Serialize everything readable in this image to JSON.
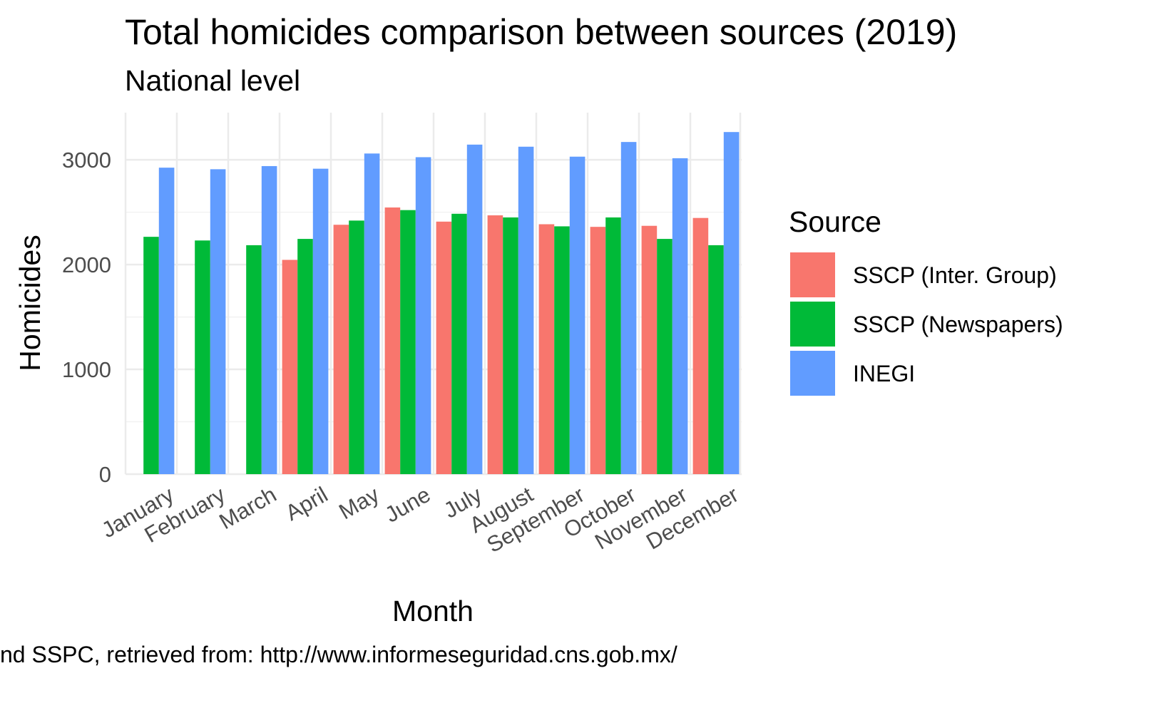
{
  "chart_data": {
    "type": "bar",
    "title": "Total homicides comparison between sources (2019)",
    "subtitle": "National level",
    "xlabel": "Month",
    "ylabel": "Homicides",
    "caption": "nd SSPC, retrieved from: http://www.informeseguridad.cns.gob.mx/",
    "ylim": [
      0,
      3450
    ],
    "yticks": [
      0,
      1000,
      2000,
      3000
    ],
    "grid": true,
    "legend": {
      "title": "Source",
      "position": "right"
    },
    "categories": [
      "January",
      "February",
      "March",
      "April",
      "May",
      "June",
      "July",
      "August",
      "September",
      "October",
      "November",
      "December"
    ],
    "series": [
      {
        "name": "SSCP (Inter. Group)",
        "color": "#F8766D",
        "values": [
          null,
          null,
          null,
          2045,
          2380,
          2545,
          2410,
          2470,
          2385,
          2360,
          2370,
          2445
        ]
      },
      {
        "name": "SSCP (Newspapers)",
        "color": "#00BA38",
        "values": [
          2265,
          2230,
          2185,
          2245,
          2420,
          2520,
          2485,
          2450,
          2365,
          2450,
          2245,
          2185
        ]
      },
      {
        "name": "INEGI",
        "color": "#619CFF",
        "values": [
          2925,
          2910,
          2940,
          2915,
          3060,
          3025,
          3145,
          3125,
          3030,
          3170,
          3015,
          3265
        ]
      }
    ]
  }
}
